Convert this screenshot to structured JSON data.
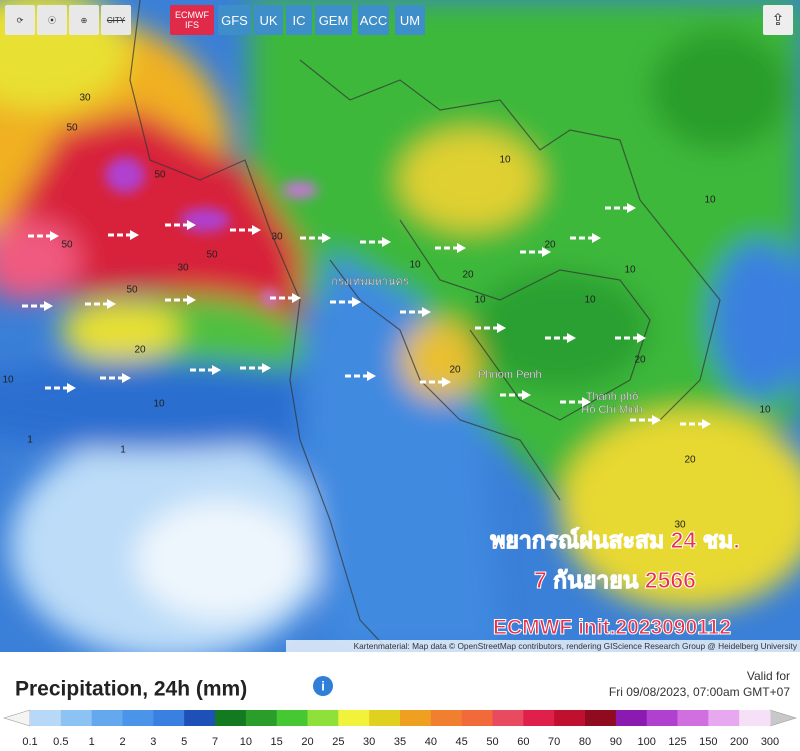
{
  "toolbar": {
    "city": "CITY",
    "models": [
      "ECMWF IFS",
      "GFS",
      "UK",
      "IC",
      "GEM",
      "ACC",
      "UM"
    ],
    "active_model": "ECMWF IFS"
  },
  "map": {
    "place_labels": [
      "กรุงเทพมหานคร",
      "Phnom Penh",
      "Thành phố",
      "Hồ Chí Minh"
    ],
    "contour_labels": [
      "30",
      "50",
      "50",
      "50",
      "50",
      "50",
      "30",
      "30",
      "20",
      "10",
      "10",
      "1",
      "1",
      "20",
      "10",
      "20",
      "10",
      "10",
      "20",
      "10",
      "10",
      "20",
      "30",
      "10",
      "20",
      "10"
    ],
    "overlay": [
      "พยากรณ์ฝนสะสม 24 ชม.",
      "7 กันยายน 2566",
      "ECMWF init.2023090112"
    ],
    "attribution": "Kartenmaterial: Map data © OpenStreetMap contributors, rendering GIScience Research Group @ Heidelberg University"
  },
  "legend": {
    "title": "Precipitation, 24h (mm)",
    "valid_label": "Valid for",
    "valid_time": "Fri 09/08/2023, 07:00am GMT+07",
    "labels": [
      "0.1",
      "0.5",
      "1",
      "2",
      "3",
      "5",
      "7",
      "10",
      "15",
      "20",
      "25",
      "30",
      "35",
      "40",
      "45",
      "50",
      "60",
      "70",
      "80",
      "90",
      "100",
      "125",
      "150",
      "200",
      "300"
    ],
    "colors": [
      "#b7d8f7",
      "#8cc3f3",
      "#64a9ee",
      "#4a95ea",
      "#3a80e0",
      "#1f50b8",
      "#137a1f",
      "#2a9d2a",
      "#46c832",
      "#8fe03a",
      "#f2f23a",
      "#e0d020",
      "#f0a020",
      "#f08030",
      "#f26a3a",
      "#e84a60",
      "#e0204a",
      "#c01030",
      "#900a20",
      "#8a1ab0",
      "#b040d0",
      "#d070e0",
      "#e8a8f0",
      "#f5e0f8"
    ]
  }
}
